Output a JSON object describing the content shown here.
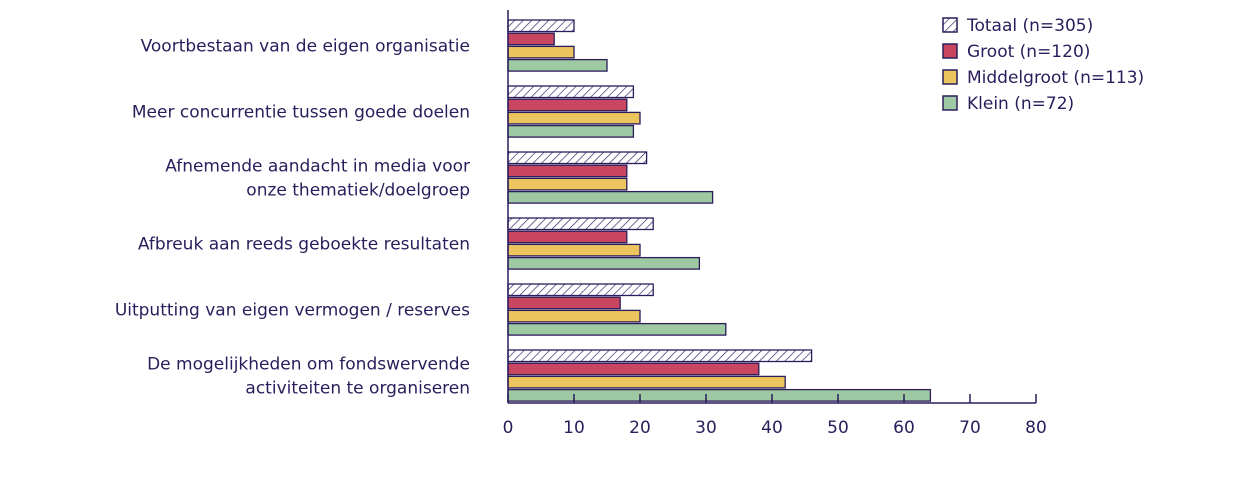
{
  "chart_data": {
    "type": "bar",
    "orientation": "horizontal",
    "categories": [
      [
        "Voortbestaan van de eigen organisatie"
      ],
      [
        "Meer concurrentie tussen goede doelen"
      ],
      [
        "Afnemende aandacht in media voor",
        "onze thematiek/doelgroep"
      ],
      [
        "Afbreuk aan reeds geboekte resultaten"
      ],
      [
        "Uitputting van eigen vermogen / reserves"
      ],
      [
        "De mogelijkheden om fondswervende",
        "activiteiten te organiseren"
      ]
    ],
    "series": [
      {
        "name": "Totaal (n=305)",
        "color": "#ffffff",
        "pattern": "hatch",
        "values": [
          10,
          19,
          21,
          22,
          22,
          46
        ]
      },
      {
        "name": "Groot (n=120)",
        "color": "#c8465f",
        "values": [
          7,
          18,
          18,
          18,
          17,
          38
        ]
      },
      {
        "name": "Middelgroot (n=113)",
        "color": "#ecc55e",
        "values": [
          10,
          20,
          18,
          20,
          20,
          42
        ]
      },
      {
        "name": "Klein (n=72)",
        "color": "#9ec9a2",
        "values": [
          15,
          19,
          31,
          29,
          33,
          64
        ]
      }
    ],
    "xlim": [
      0,
      80
    ],
    "xticks": [
      "0",
      "10",
      "20",
      "30",
      "40",
      "50",
      "60",
      "70",
      "80"
    ],
    "legend_position": "top-right",
    "grid": false,
    "stroke_color": "#2b1d5c"
  }
}
